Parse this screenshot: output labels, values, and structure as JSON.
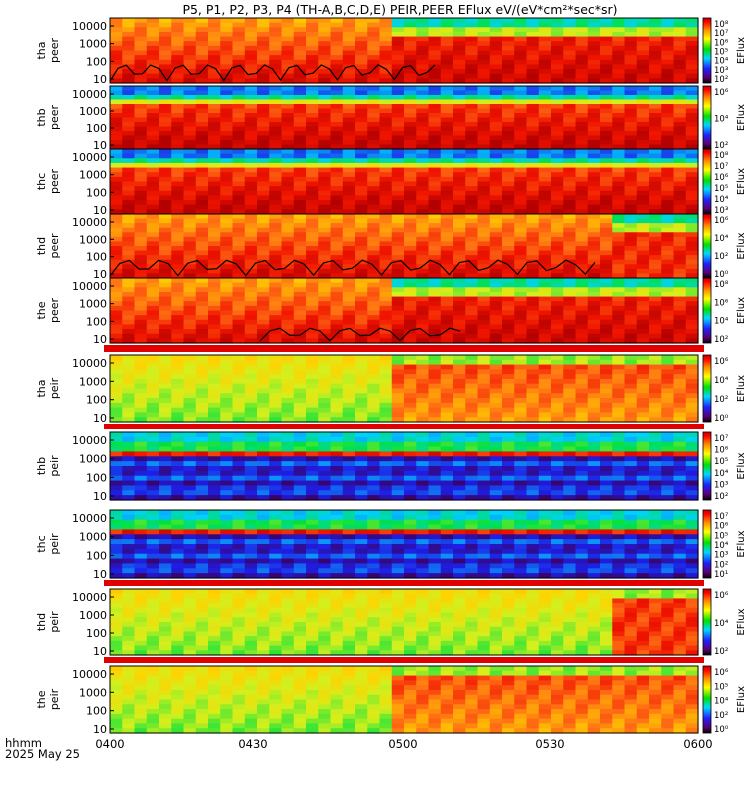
{
  "chart_data": {
    "type": "heatmap",
    "title": "P5, P1, P2, P3, P4 (TH-A,B,C,D,E) PEIR,PEER EFlux eV/(eV*cm²*sec*sr)",
    "x_axis": {
      "label_line1": "hhmm",
      "label_line2": "2025 May 25",
      "ticks": [
        "0400",
        "0430",
        "0500",
        "0530",
        "0600"
      ]
    },
    "colorbar_label": "EFlux",
    "panels": [
      {
        "probe": "tha",
        "species": "peer",
        "yticks": [
          "10000",
          "1000",
          "100",
          "10"
        ],
        "cbar_ticks": [
          "10⁸",
          "10⁷",
          "10⁶",
          "10⁵",
          "10⁴",
          "10³",
          "10²"
        ],
        "boundary_curve": true
      },
      {
        "probe": "thb",
        "species": "peer",
        "yticks": [
          "10000",
          "1000",
          "100",
          "10"
        ],
        "cbar_ticks": [
          "10⁶",
          "10⁴",
          "10²"
        ],
        "boundary_curve": false
      },
      {
        "probe": "thc",
        "species": "peer",
        "yticks": [
          "10000",
          "1000",
          "100",
          "10"
        ],
        "cbar_ticks": [
          "10⁸",
          "10⁷",
          "10⁶",
          "10⁵",
          "10⁴",
          "10³"
        ],
        "boundary_curve": false
      },
      {
        "probe": "thd",
        "species": "peer",
        "yticks": [
          "10000",
          "1000",
          "100",
          "10"
        ],
        "cbar_ticks": [
          "10⁶",
          "10⁴",
          "10²",
          "10⁰"
        ],
        "boundary_curve": true
      },
      {
        "probe": "the",
        "species": "peer",
        "yticks": [
          "10000",
          "1000",
          "100",
          "10"
        ],
        "cbar_ticks": [
          "10⁸",
          "10⁶",
          "10⁴",
          "10²"
        ],
        "boundary_curve": true
      },
      {
        "probe": "tha",
        "species": "peir",
        "yticks": [
          "10000",
          "1000",
          "100",
          "10"
        ],
        "cbar_ticks": [
          "10⁶",
          "10⁴",
          "10²",
          "10⁰"
        ],
        "boundary_curve": false
      },
      {
        "probe": "thb",
        "species": "peir",
        "yticks": [
          "10000",
          "1000",
          "100",
          "10"
        ],
        "cbar_ticks": [
          "10⁷",
          "10⁶",
          "10⁵",
          "10⁴",
          "10³",
          "10²"
        ],
        "boundary_curve": false
      },
      {
        "probe": "thc",
        "species": "peir",
        "yticks": [
          "10000",
          "1000",
          "100",
          "10"
        ],
        "cbar_ticks": [
          "10⁷",
          "10⁶",
          "10⁵",
          "10⁴",
          "10³",
          "10²",
          "10¹"
        ],
        "boundary_curve": false
      },
      {
        "probe": "thd",
        "species": "peir",
        "yticks": [
          "10000",
          "1000",
          "100",
          "10"
        ],
        "cbar_ticks": [
          "10⁶",
          "10⁴",
          "10²"
        ],
        "boundary_curve": false
      },
      {
        "probe": "the",
        "species": "peir",
        "yticks": [
          "10000",
          "1000",
          "100",
          "10"
        ],
        "cbar_ticks": [
          "10⁶",
          "10⁵",
          "10⁴",
          "10²",
          "10⁰"
        ],
        "boundary_curve": false
      }
    ]
  }
}
